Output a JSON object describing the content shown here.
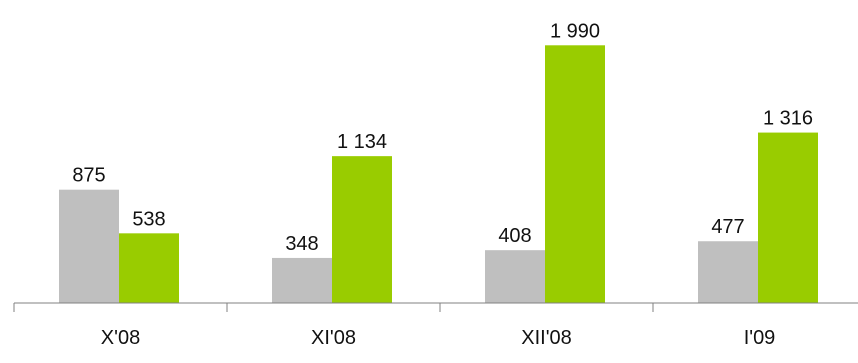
{
  "chart_data": {
    "type": "bar",
    "categories": [
      "X'08",
      "XI'08",
      "XII'08",
      "I'09"
    ],
    "series": [
      {
        "values": [
          875,
          348,
          408,
          477
        ],
        "color": "#bfbfbf"
      },
      {
        "values": [
          538,
          1134,
          1990,
          1316
        ],
        "color": "#99cc00"
      }
    ],
    "data_labels": [
      [
        "875",
        "348",
        "408",
        "477"
      ],
      [
        "538",
        "1 134",
        "1 990",
        "1 316"
      ]
    ],
    "ylim": [
      0,
      2000
    ],
    "grid": false,
    "legend": "none",
    "title": "",
    "xlabel": "",
    "ylabel": ""
  }
}
